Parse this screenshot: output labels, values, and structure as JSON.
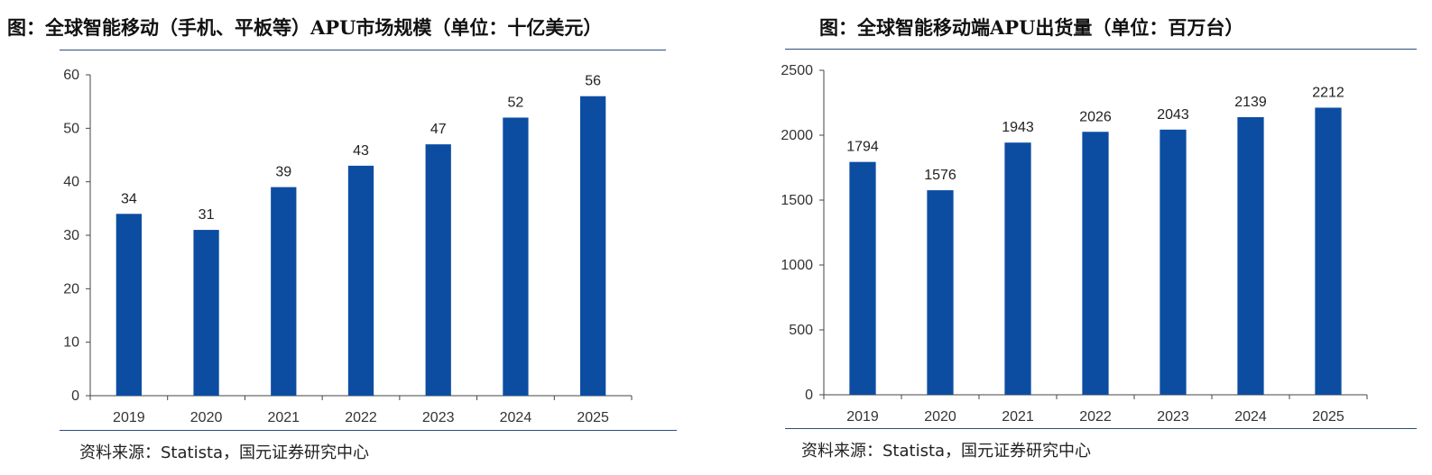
{
  "chart_data": [
    {
      "type": "bar",
      "title": "图：全球智能移动（手机、平板等）APU市场规模（单位：十亿美元）",
      "source": "资料来源：Statista，国元证券研究中心",
      "categories": [
        "2019",
        "2020",
        "2021",
        "2022",
        "2023",
        "2024",
        "2025"
      ],
      "values": [
        34,
        31,
        39,
        43,
        47,
        52,
        56
      ],
      "y_ticks": [
        "0",
        "10",
        "20",
        "30",
        "40",
        "50",
        "60"
      ],
      "ylim": [
        0,
        60
      ],
      "bar_color": "#0c4da2",
      "grid": false,
      "legend": "none"
    },
    {
      "type": "bar",
      "title": "图：全球智能移动端APU出货量（单位：百万台）",
      "source": "资料来源：Statista，国元证券研究中心",
      "categories": [
        "2019",
        "2020",
        "2021",
        "2022",
        "2023",
        "2024",
        "2025"
      ],
      "values": [
        1794,
        1576,
        1943,
        2026,
        2043,
        2139,
        2212
      ],
      "y_ticks": [
        "0",
        "500",
        "1000",
        "1500",
        "2000",
        "2500"
      ],
      "ylim": [
        0,
        2500
      ],
      "bar_color": "#0c4da2",
      "grid": false,
      "legend": "none"
    }
  ]
}
